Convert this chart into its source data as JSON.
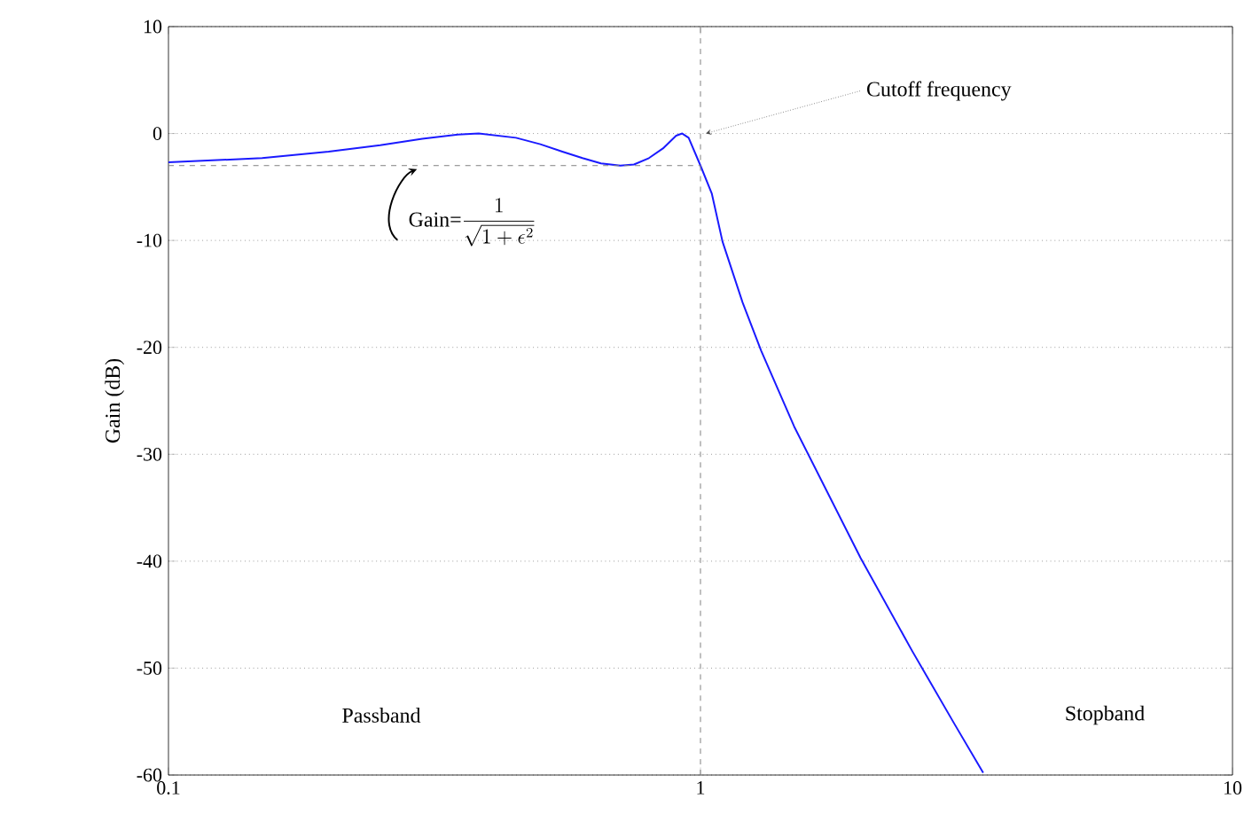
{
  "chart_data": {
    "type": "line",
    "ylabel": "Gain (dB)",
    "log": "x",
    "xlim": [
      0.1,
      10
    ],
    "ylim": [
      -60,
      10
    ],
    "xticks": [
      0.1,
      1,
      10
    ],
    "yticks": [
      -60,
      -50,
      -40,
      -30,
      -20,
      -10,
      0,
      10
    ],
    "grid": "y",
    "series": [
      {
        "color": "#1a1aff",
        "line_style": "solid",
        "x": [
          0.1,
          0.15,
          0.2,
          0.25,
          0.3,
          0.35,
          0.383,
          0.45,
          0.5,
          0.55,
          0.6,
          0.65,
          0.707,
          0.75,
          0.8,
          0.85,
          0.9,
          0.924,
          0.95,
          1,
          1.05,
          1.1,
          1.2,
          1.3,
          1.5,
          2,
          2.5,
          3,
          3.4
        ],
        "values": [
          -2.7,
          -2.3,
          -1.7,
          -1.1,
          -0.5,
          -0.1,
          0,
          -0.4,
          -1.0,
          -1.7,
          -2.3,
          -2.8,
          -3.0,
          -2.9,
          -2.3,
          -1.4,
          -0.2,
          0,
          -0.4,
          -3.0,
          -5.6,
          -10.1,
          -15.8,
          -20.3,
          -27.4,
          -39.7,
          -48.4,
          -55.2,
          -59.8
        ]
      },
      {
        "color": "#808080",
        "line_style": "dashed",
        "x": [
          0.1,
          1
        ],
        "values": [
          -3,
          -3
        ]
      }
    ],
    "ref_lines": [
      {
        "axis": "x",
        "value": 1,
        "color": "#808080",
        "line_style": "dashed"
      }
    ],
    "annotations": [
      {
        "text": "Cutoff frequency",
        "x": 1,
        "y": 0
      },
      {
        "text": "\\text{Gain=}\\dfrac{1}{\\sqrt{1+\\epsilon^{2}}}",
        "x": 0.3,
        "y": -3
      },
      "Passband",
      "Stopband"
    ]
  }
}
